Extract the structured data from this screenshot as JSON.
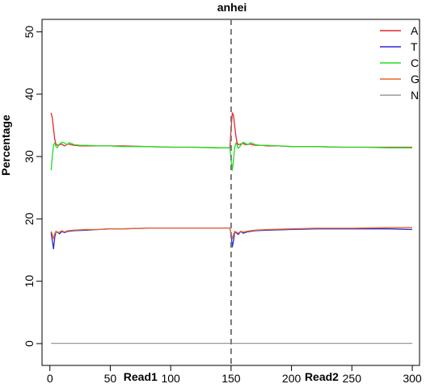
{
  "chart_data": {
    "type": "line",
    "title": "anhei",
    "ylabel": "Percentage",
    "xlabel": "",
    "xlim": [
      -6.5,
      306
    ],
    "ylim": [
      -3.5,
      52
    ],
    "x_ticks": [
      0,
      50,
      100,
      150,
      200,
      250,
      300
    ],
    "y_ticks": [
      0,
      10,
      20,
      30,
      40,
      50
    ],
    "divider_x": 150,
    "read_labels": [
      {
        "text": "Read1",
        "x": 75
      },
      {
        "text": "Read2",
        "x": 225
      }
    ],
    "legend_position": "top-right",
    "grid": false,
    "series": [
      {
        "name": "A",
        "color": "#e8262a",
        "points": [
          [
            1,
            37
          ],
          [
            2,
            36.2
          ],
          [
            3,
            34.5
          ],
          [
            4,
            32.8
          ],
          [
            5,
            32.0
          ],
          [
            6,
            31.8
          ],
          [
            8,
            31.9
          ],
          [
            10,
            32.0
          ],
          [
            12,
            31.7
          ],
          [
            15,
            32.0
          ],
          [
            20,
            31.8
          ],
          [
            25,
            31.7
          ],
          [
            30,
            31.7
          ],
          [
            40,
            31.7
          ],
          [
            50,
            31.7
          ],
          [
            60,
            31.7
          ],
          [
            80,
            31.6
          ],
          [
            100,
            31.5
          ],
          [
            120,
            31.5
          ],
          [
            140,
            31.4
          ],
          [
            149,
            31.4
          ],
          [
            150,
            34.5
          ],
          [
            151,
            37
          ],
          [
            152,
            36.6
          ],
          [
            153,
            34.8
          ],
          [
            154,
            33.2
          ],
          [
            155,
            32.2
          ],
          [
            156,
            31.9
          ],
          [
            158,
            32.0
          ],
          [
            160,
            32.1
          ],
          [
            162,
            31.9
          ],
          [
            165,
            32.0
          ],
          [
            170,
            31.8
          ],
          [
            175,
            31.8
          ],
          [
            180,
            31.7
          ],
          [
            190,
            31.7
          ],
          [
            200,
            31.6
          ],
          [
            220,
            31.6
          ],
          [
            240,
            31.5
          ],
          [
            260,
            31.5
          ],
          [
            280,
            31.5
          ],
          [
            300,
            31.5
          ]
        ]
      },
      {
        "name": "T",
        "color": "#2a2ad6",
        "points": [
          [
            1,
            17.8
          ],
          [
            2,
            16.5
          ],
          [
            3,
            15.2
          ],
          [
            4,
            17.0
          ],
          [
            5,
            18.0
          ],
          [
            6,
            17.9
          ],
          [
            8,
            17.6
          ],
          [
            10,
            18.0
          ],
          [
            12,
            17.8
          ],
          [
            15,
            18.0
          ],
          [
            20,
            18.1
          ],
          [
            30,
            18.2
          ],
          [
            40,
            18.3
          ],
          [
            50,
            18.4
          ],
          [
            60,
            18.4
          ],
          [
            80,
            18.5
          ],
          [
            100,
            18.5
          ],
          [
            120,
            18.5
          ],
          [
            140,
            18.5
          ],
          [
            149,
            18.5
          ],
          [
            150,
            17.5
          ],
          [
            151,
            15.5
          ],
          [
            152,
            16.5
          ],
          [
            153,
            18.0
          ],
          [
            154,
            17.8
          ],
          [
            156,
            17.5
          ],
          [
            158,
            18.0
          ],
          [
            160,
            17.7
          ],
          [
            163,
            17.9
          ],
          [
            166,
            18.0
          ],
          [
            170,
            18.1
          ],
          [
            180,
            18.2
          ],
          [
            200,
            18.3
          ],
          [
            220,
            18.4
          ],
          [
            250,
            18.4
          ],
          [
            280,
            18.4
          ],
          [
            300,
            18.3
          ]
        ]
      },
      {
        "name": "C",
        "color": "#22dd22",
        "points": [
          [
            1,
            27.8
          ],
          [
            2,
            30.0
          ],
          [
            3,
            31.8
          ],
          [
            4,
            32.2
          ],
          [
            5,
            31.6
          ],
          [
            6,
            31.4
          ],
          [
            8,
            32.0
          ],
          [
            10,
            32.3
          ],
          [
            12,
            32.2
          ],
          [
            14,
            31.9
          ],
          [
            16,
            32.2
          ],
          [
            18,
            32.1
          ],
          [
            20,
            31.9
          ],
          [
            25,
            31.8
          ],
          [
            30,
            31.8
          ],
          [
            40,
            31.7
          ],
          [
            50,
            31.7
          ],
          [
            60,
            31.6
          ],
          [
            80,
            31.6
          ],
          [
            100,
            31.5
          ],
          [
            120,
            31.5
          ],
          [
            140,
            31.4
          ],
          [
            149,
            31.4
          ],
          [
            150,
            29.5
          ],
          [
            151,
            27.8
          ],
          [
            152,
            29.5
          ],
          [
            153,
            31.5
          ],
          [
            154,
            32.2
          ],
          [
            155,
            31.8
          ],
          [
            156,
            31.3
          ],
          [
            158,
            31.8
          ],
          [
            160,
            32.3
          ],
          [
            162,
            32.1
          ],
          [
            164,
            31.9
          ],
          [
            166,
            32.2
          ],
          [
            168,
            32.1
          ],
          [
            170,
            31.9
          ],
          [
            175,
            31.8
          ],
          [
            180,
            31.8
          ],
          [
            190,
            31.7
          ],
          [
            200,
            31.6
          ],
          [
            220,
            31.6
          ],
          [
            240,
            31.5
          ],
          [
            260,
            31.5
          ],
          [
            280,
            31.4
          ],
          [
            300,
            31.4
          ]
        ]
      },
      {
        "name": "G",
        "color": "#e8662a",
        "points": [
          [
            1,
            18.0
          ],
          [
            2,
            17.5
          ],
          [
            3,
            16.8
          ],
          [
            4,
            17.6
          ],
          [
            5,
            18.0
          ],
          [
            6,
            17.8
          ],
          [
            8,
            17.9
          ],
          [
            10,
            18.1
          ],
          [
            12,
            17.9
          ],
          [
            15,
            18.1
          ],
          [
            20,
            18.2
          ],
          [
            30,
            18.3
          ],
          [
            40,
            18.3
          ],
          [
            50,
            18.4
          ],
          [
            60,
            18.4
          ],
          [
            80,
            18.5
          ],
          [
            100,
            18.5
          ],
          [
            120,
            18.5
          ],
          [
            140,
            18.5
          ],
          [
            149,
            18.5
          ],
          [
            150,
            17.6
          ],
          [
            151,
            16.8
          ],
          [
            152,
            17.5
          ],
          [
            153,
            18.0
          ],
          [
            154,
            17.9
          ],
          [
            156,
            17.7
          ],
          [
            158,
            18.0
          ],
          [
            160,
            17.9
          ],
          [
            163,
            18.0
          ],
          [
            166,
            18.1
          ],
          [
            170,
            18.2
          ],
          [
            180,
            18.3
          ],
          [
            200,
            18.4
          ],
          [
            220,
            18.5
          ],
          [
            250,
            18.5
          ],
          [
            280,
            18.6
          ],
          [
            300,
            18.6
          ]
        ]
      },
      {
        "name": "N",
        "color": "#999999",
        "points": [
          [
            1,
            0.05
          ],
          [
            150,
            0.05
          ],
          [
            151,
            0.05
          ],
          [
            300,
            0.05
          ]
        ]
      }
    ]
  }
}
